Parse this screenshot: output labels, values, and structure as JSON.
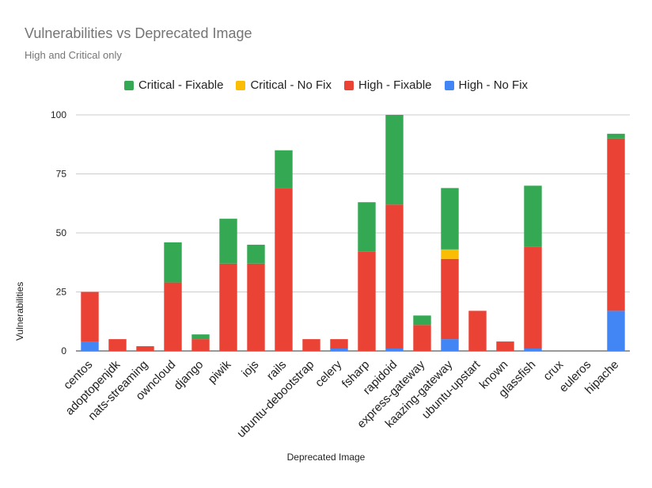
{
  "chart_data": {
    "type": "bar",
    "stacked": true,
    "title": "Vulnerabilities vs Deprecated Image",
    "subtitle": "High and Critical only",
    "xlabel": "Deprecated Image",
    "ylabel": "Vulnerabilities",
    "ylim": [
      0,
      100
    ],
    "yticks": [
      0,
      25,
      50,
      75,
      100
    ],
    "grid": true,
    "legend_position": "top",
    "categories": [
      "centos",
      "adoptopenjdk",
      "nats-streaming",
      "owncloud",
      "django",
      "piwik",
      "iojs",
      "rails",
      "ubuntu-debootstrap",
      "celery",
      "fsharp",
      "rapidoid",
      "express-gateway",
      "kaazing-gateway",
      "ubuntu-upstart",
      "known",
      "glassfish",
      "crux",
      "euleros",
      "hipache"
    ],
    "series": [
      {
        "name": "High - No Fix",
        "color": "#4285f4",
        "values": [
          4,
          0,
          0,
          0,
          0,
          0,
          0,
          0,
          0,
          1,
          0,
          1,
          0,
          5,
          0,
          0,
          1,
          0,
          0,
          17
        ]
      },
      {
        "name": "High - Fixable",
        "color": "#ea4335",
        "values": [
          21,
          5,
          2,
          29,
          5,
          37,
          37,
          69,
          5,
          4,
          42,
          61,
          11,
          34,
          17,
          4,
          43,
          0,
          0,
          73
        ]
      },
      {
        "name": "Critical - No Fix",
        "color": "#fbbc04",
        "values": [
          0,
          0,
          0,
          0,
          0,
          0,
          0,
          0,
          0,
          0,
          0,
          0,
          0,
          4,
          0,
          0,
          0,
          0,
          0,
          0
        ]
      },
      {
        "name": "Critical - Fixable",
        "color": "#34a853",
        "values": [
          0,
          0,
          0,
          17,
          2,
          19,
          8,
          16,
          0,
          0,
          21,
          38,
          4,
          26,
          0,
          0,
          26,
          0,
          0,
          2
        ]
      }
    ],
    "legend_order": [
      "Critical - Fixable",
      "Critical - No Fix",
      "High - Fixable",
      "High - No Fix"
    ]
  }
}
